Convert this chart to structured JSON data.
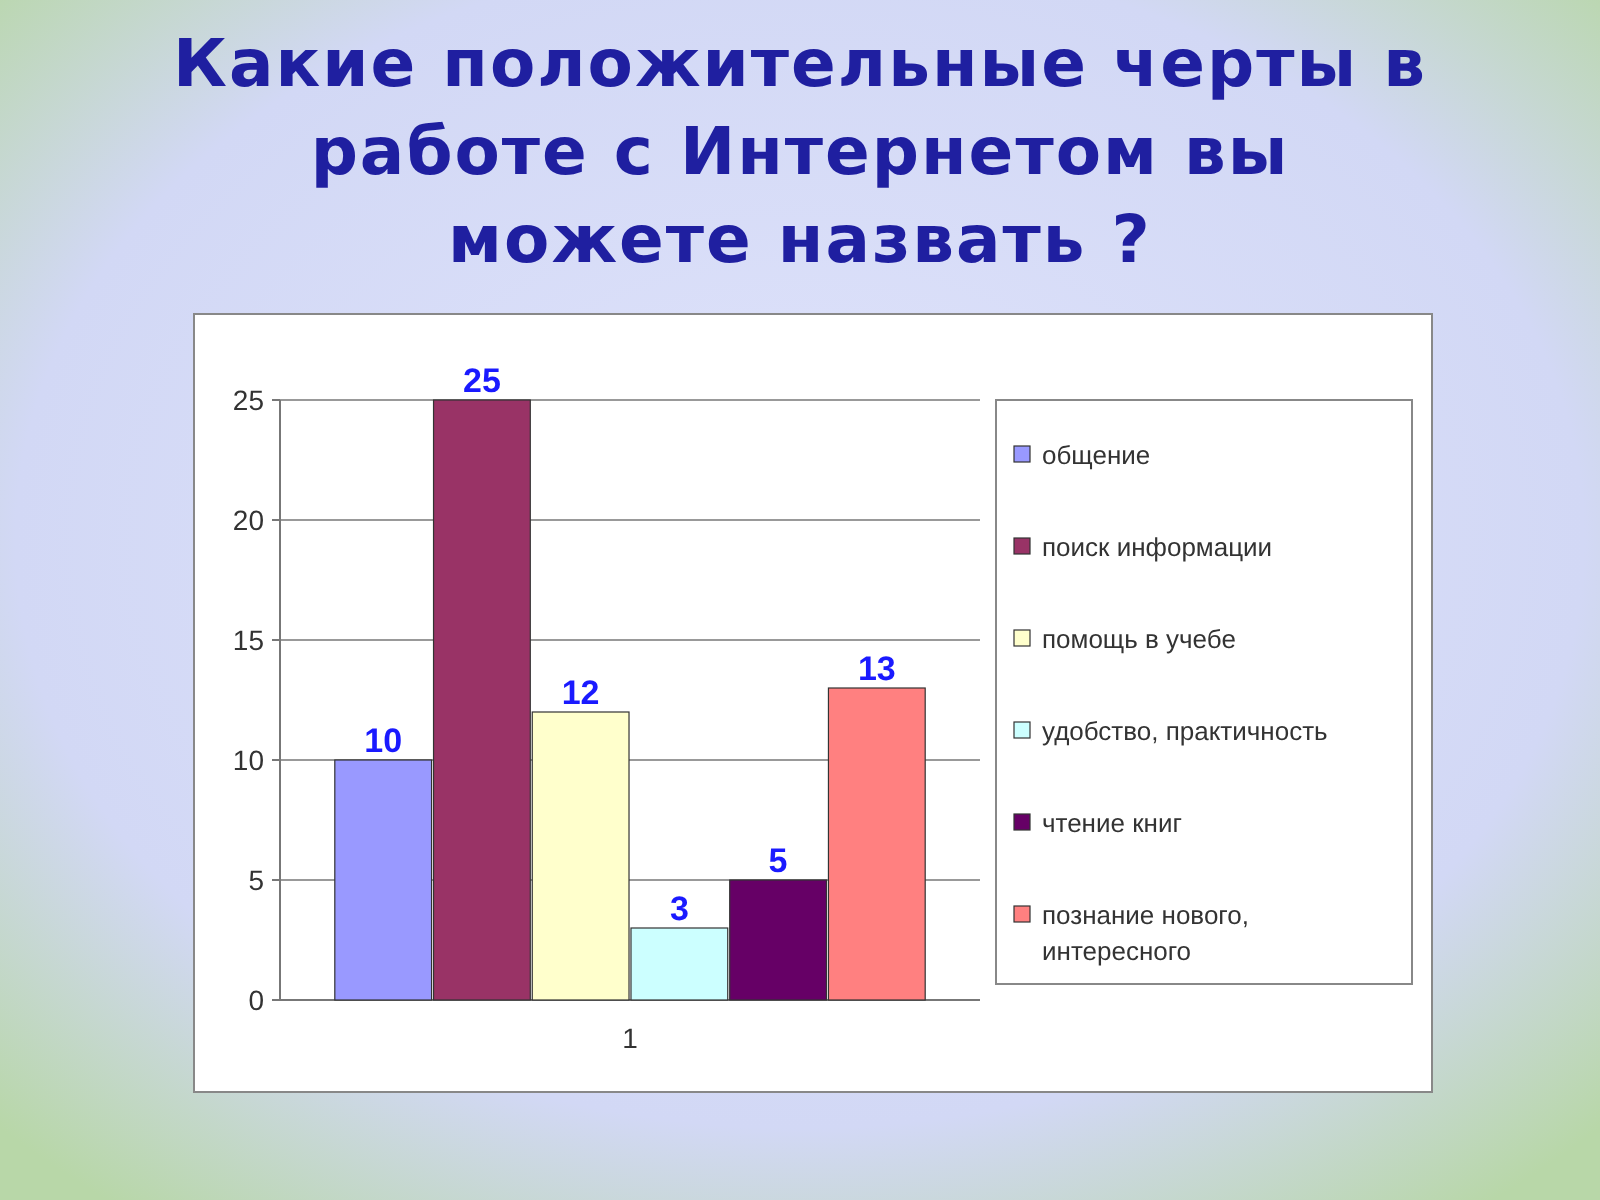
{
  "chart_data": {
    "type": "bar",
    "title": "Какие положительные черты в работе с Интернетом вы можете назвать ?",
    "categories": [
      "1"
    ],
    "series": [
      {
        "name": "общение",
        "color": "#9999ff",
        "values": [
          10
        ]
      },
      {
        "name": "поиск информации",
        "color": "#993366",
        "values": [
          25
        ]
      },
      {
        "name": "помощь в учебе",
        "color": "#ffffcc",
        "values": [
          12
        ]
      },
      {
        "name": "удобство, практичность",
        "color": "#ccffff",
        "values": [
          3
        ]
      },
      {
        "name": "чтение книг",
        "color": "#660066",
        "values": [
          5
        ]
      },
      {
        "name": "познание нового, интересного",
        "color": "#ff8080",
        "values": [
          13
        ]
      }
    ],
    "ylim": [
      0,
      25
    ],
    "yticks": [
      0,
      5,
      10,
      15,
      20,
      25
    ],
    "grid": "y",
    "legend": "right",
    "data_labels": true
  }
}
